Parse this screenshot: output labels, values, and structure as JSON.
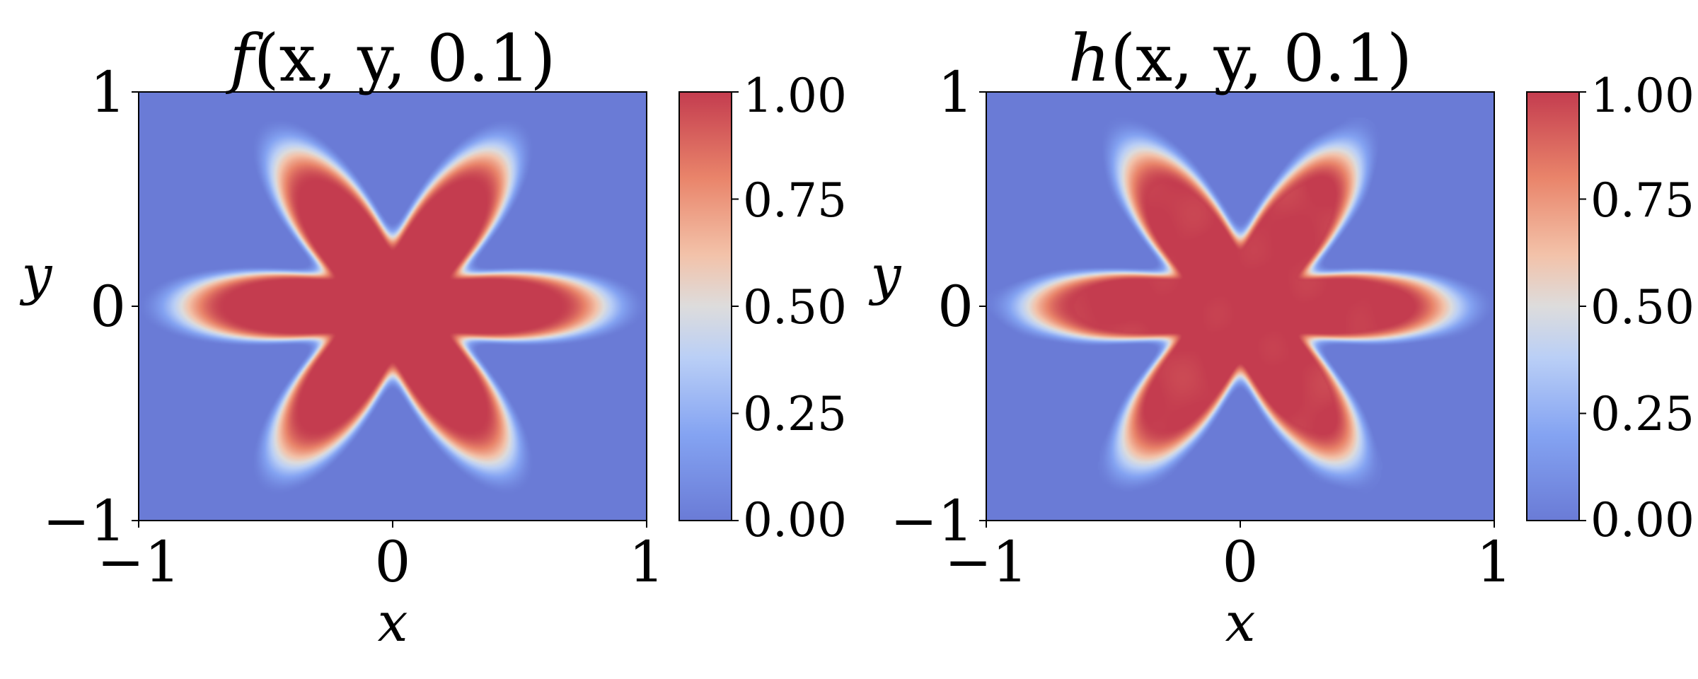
{
  "chart_data": [
    {
      "type": "heatmap",
      "title": "f(x, y, 0.1)",
      "title_func": "f",
      "title_args": "(x, y, 0.1)",
      "xlabel": "x",
      "ylabel": "y",
      "xlim": [
        -1,
        1
      ],
      "ylim": [
        -1,
        1
      ],
      "xticks": [
        -1,
        0,
        1
      ],
      "yticks": [
        -1,
        0,
        1
      ],
      "xtick_labels": [
        "−1",
        "0",
        "1"
      ],
      "ytick_labels": [
        "−1",
        "0",
        "1"
      ],
      "field": {
        "shape": "six-petal star",
        "petals": 6,
        "petal_angle_offset_deg": 0,
        "inner_value": 1.0,
        "outer_value": 0.0,
        "mean_radius": 0.5,
        "petal_amplitude": 0.22,
        "plateau_radius": 0.455,
        "edge_radius": 0.7
      },
      "colorbar": {
        "cmap": "coolwarm",
        "range": [
          0.0,
          1.0
        ],
        "ticks": [
          0.0,
          0.25,
          0.5,
          0.75,
          1.0
        ],
        "tick_labels": [
          "0.00",
          "0.25",
          "0.50",
          "0.75",
          "1.00"
        ]
      },
      "grid": false
    },
    {
      "type": "heatmap",
      "title": "h(x, y, 0.1)",
      "title_func": "h",
      "title_args": "(x, y, 0.1)",
      "xlabel": "x",
      "ylabel": "y",
      "xlim": [
        -1,
        1
      ],
      "ylim": [
        -1,
        1
      ],
      "xticks": [
        -1,
        0,
        1
      ],
      "yticks": [
        -1,
        0,
        1
      ],
      "xtick_labels": [
        "−1",
        "0",
        "1"
      ],
      "ytick_labels": [
        "−1",
        "0",
        "1"
      ],
      "field": {
        "shape": "six-petal star (approximation with small interior ripples)",
        "petals": 6,
        "petal_angle_offset_deg": 0,
        "inner_value": 1.0,
        "outer_value": 0.0,
        "mean_radius": 0.5,
        "petal_amplitude": 0.22,
        "plateau_radius": 0.455,
        "edge_radius": 0.7,
        "noise_amplitude": 0.04
      },
      "colorbar": {
        "cmap": "coolwarm",
        "range": [
          0.0,
          1.0
        ],
        "ticks": [
          0.0,
          0.25,
          0.5,
          0.75,
          1.0
        ],
        "tick_labels": [
          "0.00",
          "0.25",
          "0.50",
          "0.75",
          "1.00"
        ]
      },
      "grid": false
    }
  ],
  "colors": {
    "cmap_low": "#6a7bd6",
    "cmap_mid": "#dddcdc",
    "cmap_high": "#c43c4f",
    "axis": "#000000",
    "background": "#ffffff"
  }
}
